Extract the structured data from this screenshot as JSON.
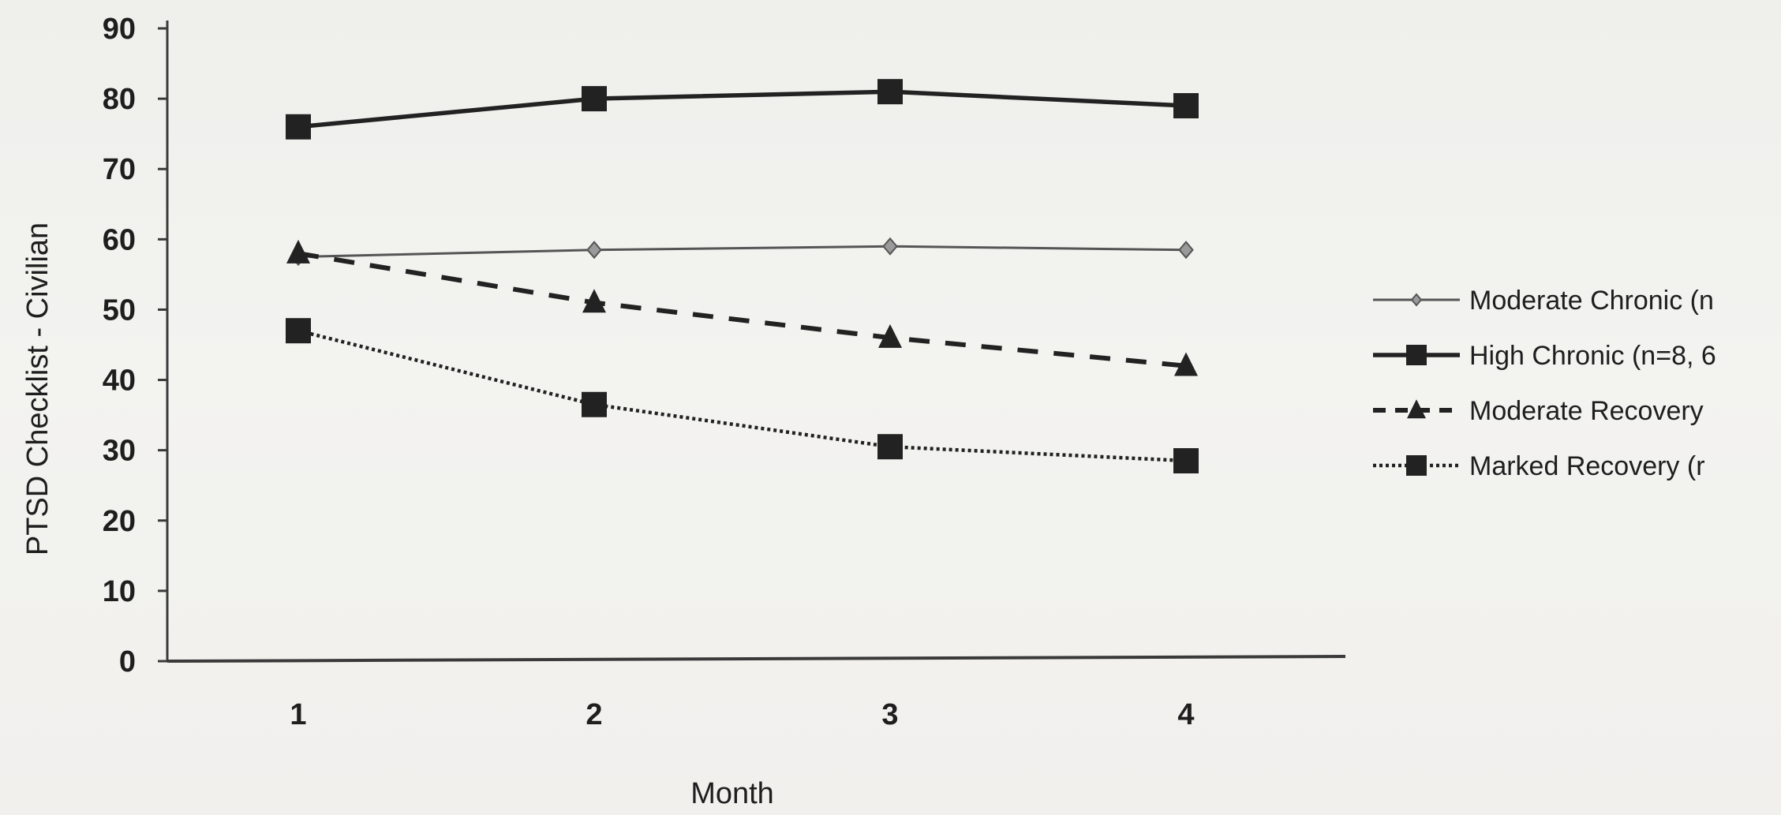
{
  "chart_data": {
    "type": "line",
    "title": "",
    "xlabel": "Month",
    "ylabel": "PTSD Checklist - Civilian",
    "x": [
      1,
      2,
      3,
      4
    ],
    "xticks": [
      "1",
      "2",
      "3",
      "4"
    ],
    "ylim": [
      0,
      90
    ],
    "yticks": [
      "0",
      "10",
      "20",
      "30",
      "40",
      "50",
      "60",
      "70",
      "80",
      "90"
    ],
    "grid": false,
    "legend_position": "right",
    "series": [
      {
        "name": "Moderate Chronic (n",
        "values": [
          57.5,
          58.5,
          59,
          58.5
        ],
        "marker": "diamond",
        "line": "solid-thin",
        "color": "#555555"
      },
      {
        "name": "High Chronic (n=8, 6",
        "values": [
          76,
          80,
          81,
          79
        ],
        "marker": "square",
        "line": "solid-thick",
        "color": "#222222"
      },
      {
        "name": "Moderate Recovery",
        "values": [
          58,
          51,
          46,
          42
        ],
        "marker": "triangle",
        "line": "dashed",
        "color": "#222222"
      },
      {
        "name": "Marked Recovery (r",
        "values": [
          47,
          36.5,
          30.5,
          28.5
        ],
        "marker": "square",
        "line": "dotted",
        "color": "#222222"
      }
    ]
  }
}
